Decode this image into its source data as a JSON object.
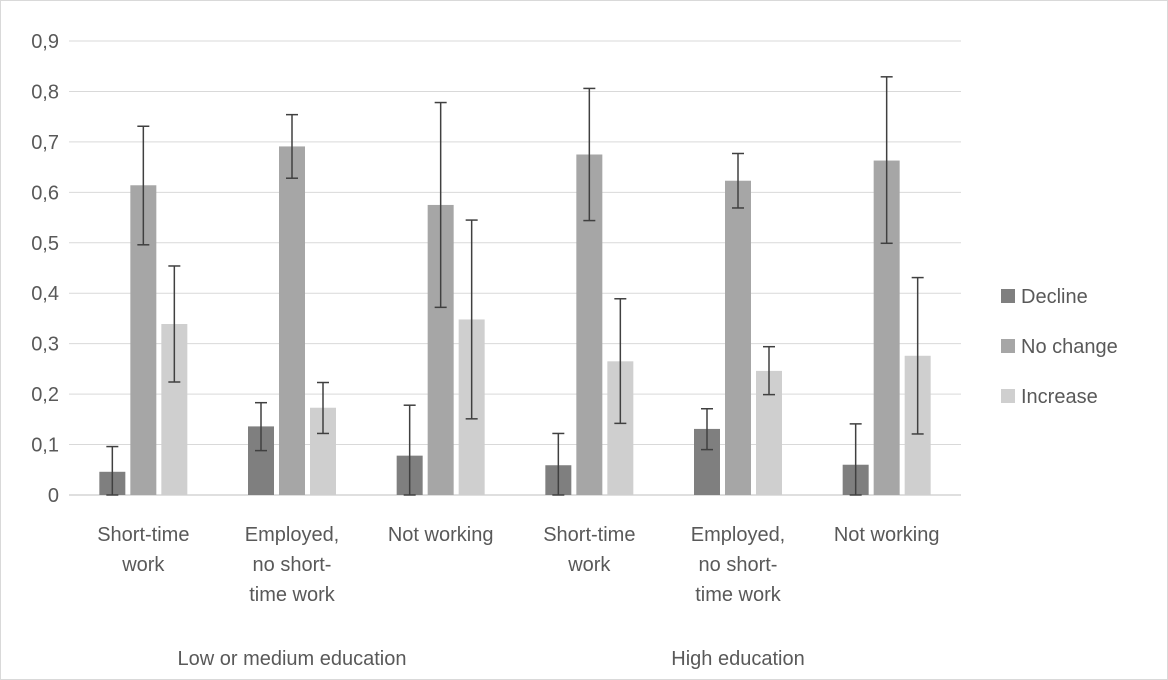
{
  "chart_data": {
    "type": "bar",
    "title": "",
    "xlabel": "",
    "ylabel": "",
    "ylim": [
      0,
      0.9
    ],
    "yticks": [
      "0",
      "0,1",
      "0,2",
      "0,3",
      "0,4",
      "0,5",
      "0,6",
      "0,7",
      "0,8",
      "0,9"
    ],
    "grid": true,
    "legend_position": "right",
    "categories": [
      [
        "Short-time",
        "work"
      ],
      [
        "Employed,",
        "no short-",
        "time work"
      ],
      [
        "Not working"
      ],
      [
        "Short-time",
        "work"
      ],
      [
        "Employed,",
        "no short-",
        "time work"
      ],
      [
        "Not working"
      ]
    ],
    "groups": [
      {
        "label": "Low or medium education",
        "span": [
          0,
          2
        ]
      },
      {
        "label": "High education",
        "span": [
          3,
          5
        ]
      }
    ],
    "series": [
      {
        "name": "Decline",
        "color": "#7f7f7f",
        "values": [
          0.046,
          0.136,
          0.078,
          0.059,
          0.131,
          0.06
        ],
        "error_low": [
          0.0,
          0.088,
          0.0,
          0.0,
          0.09,
          0.0
        ],
        "error_high": [
          0.096,
          0.183,
          0.178,
          0.122,
          0.171,
          0.141
        ]
      },
      {
        "name": "No change",
        "color": "#a6a6a6",
        "values": [
          0.614,
          0.691,
          0.575,
          0.675,
          0.623,
          0.663
        ],
        "error_low": [
          0.496,
          0.628,
          0.372,
          0.544,
          0.569,
          0.499
        ],
        "error_high": [
          0.731,
          0.754,
          0.778,
          0.806,
          0.677,
          0.829
        ]
      },
      {
        "name": "Increase",
        "color": "#cfcfcf",
        "values": [
          0.339,
          0.173,
          0.348,
          0.265,
          0.246,
          0.276
        ],
        "error_low": [
          0.224,
          0.122,
          0.151,
          0.142,
          0.199,
          0.121
        ],
        "error_high": [
          0.454,
          0.223,
          0.545,
          0.389,
          0.294,
          0.431
        ]
      }
    ]
  }
}
